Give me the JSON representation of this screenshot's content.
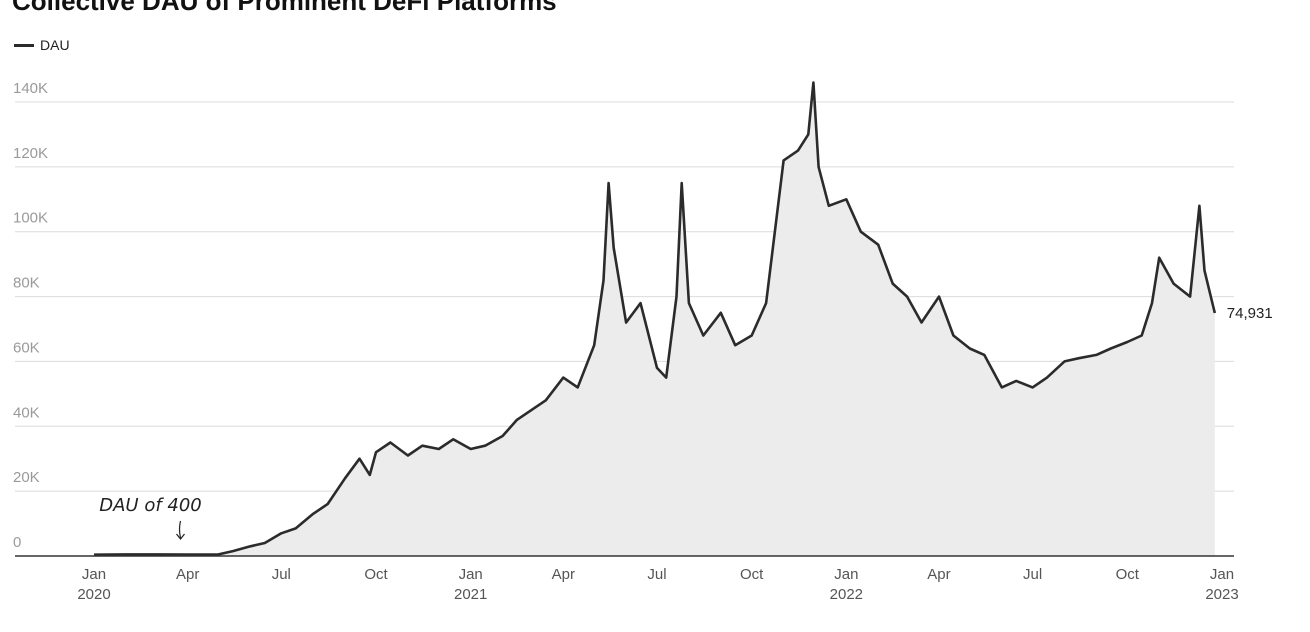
{
  "chart_data": {
    "type": "line",
    "title": "Collective DAU of Prominent DeFi Platforms",
    "legend": {
      "position": "top-left",
      "entries": [
        "DAU"
      ]
    },
    "grid": true,
    "ylim": [
      0,
      140000
    ],
    "y_ticks": [
      {
        "value": 0,
        "label": "0"
      },
      {
        "value": 20000,
        "label": "20K"
      },
      {
        "value": 40000,
        "label": "40K"
      },
      {
        "value": 60000,
        "label": "60K"
      },
      {
        "value": 80000,
        "label": "80K"
      },
      {
        "value": 100000,
        "label": "100K"
      },
      {
        "value": 120000,
        "label": "120K"
      },
      {
        "value": 140000,
        "label": "140K"
      }
    ],
    "xlim": [
      "2020-01-01",
      "2023-01-01"
    ],
    "x_ticks": [
      {
        "date": "2020-01-01",
        "line1": "Jan",
        "line2": "2020"
      },
      {
        "date": "2020-04-01",
        "line1": "Apr",
        "line2": ""
      },
      {
        "date": "2020-07-01",
        "line1": "Jul",
        "line2": ""
      },
      {
        "date": "2020-10-01",
        "line1": "Oct",
        "line2": ""
      },
      {
        "date": "2021-01-01",
        "line1": "Jan",
        "line2": "2021"
      },
      {
        "date": "2021-04-01",
        "line1": "Apr",
        "line2": ""
      },
      {
        "date": "2021-07-01",
        "line1": "Jul",
        "line2": ""
      },
      {
        "date": "2021-10-01",
        "line1": "Oct",
        "line2": ""
      },
      {
        "date": "2022-01-01",
        "line1": "Jan",
        "line2": "2022"
      },
      {
        "date": "2022-04-01",
        "line1": "Apr",
        "line2": ""
      },
      {
        "date": "2022-07-01",
        "line1": "Jul",
        "line2": ""
      },
      {
        "date": "2022-10-01",
        "line1": "Oct",
        "line2": ""
      },
      {
        "date": "2023-01-01",
        "line1": "Jan",
        "line2": "2023"
      }
    ],
    "annotations": [
      {
        "text": "DAU of 400",
        "date": "2020-03-27",
        "value": 400
      }
    ],
    "end_label": "74,931",
    "series": [
      {
        "name": "DAU",
        "color": "#2b2b2b",
        "fill": "#ececec",
        "points": [
          [
            "2020-01-01",
            400
          ],
          [
            "2020-02-01",
            500
          ],
          [
            "2020-03-01",
            500
          ],
          [
            "2020-04-01",
            450
          ],
          [
            "2020-05-01",
            500
          ],
          [
            "2020-05-15",
            1500
          ],
          [
            "2020-06-01",
            3000
          ],
          [
            "2020-06-15",
            4000
          ],
          [
            "2020-07-01",
            7000
          ],
          [
            "2020-07-15",
            8500
          ],
          [
            "2020-08-01",
            13000
          ],
          [
            "2020-08-15",
            16000
          ],
          [
            "2020-09-01",
            24000
          ],
          [
            "2020-09-15",
            30000
          ],
          [
            "2020-09-25",
            25000
          ],
          [
            "2020-10-01",
            32000
          ],
          [
            "2020-10-15",
            35000
          ],
          [
            "2020-11-01",
            31000
          ],
          [
            "2020-11-15",
            34000
          ],
          [
            "2020-12-01",
            33000
          ],
          [
            "2020-12-15",
            36000
          ],
          [
            "2021-01-01",
            33000
          ],
          [
            "2021-01-15",
            34000
          ],
          [
            "2021-02-01",
            37000
          ],
          [
            "2021-02-15",
            42000
          ],
          [
            "2021-03-01",
            45000
          ],
          [
            "2021-03-15",
            48000
          ],
          [
            "2021-04-01",
            55000
          ],
          [
            "2021-04-15",
            52000
          ],
          [
            "2021-05-01",
            65000
          ],
          [
            "2021-05-10",
            85000
          ],
          [
            "2021-05-15",
            115000
          ],
          [
            "2021-05-20",
            95000
          ],
          [
            "2021-06-01",
            72000
          ],
          [
            "2021-06-15",
            78000
          ],
          [
            "2021-07-01",
            58000
          ],
          [
            "2021-07-10",
            55000
          ],
          [
            "2021-07-20",
            80000
          ],
          [
            "2021-07-25",
            115000
          ],
          [
            "2021-08-01",
            78000
          ],
          [
            "2021-08-15",
            68000
          ],
          [
            "2021-09-01",
            75000
          ],
          [
            "2021-09-15",
            65000
          ],
          [
            "2021-10-01",
            68000
          ],
          [
            "2021-10-15",
            78000
          ],
          [
            "2021-11-01",
            122000
          ],
          [
            "2021-11-15",
            125000
          ],
          [
            "2021-11-25",
            130000
          ],
          [
            "2021-11-30",
            146000
          ],
          [
            "2021-12-05",
            120000
          ],
          [
            "2021-12-15",
            108000
          ],
          [
            "2022-01-01",
            110000
          ],
          [
            "2022-01-15",
            100000
          ],
          [
            "2022-02-01",
            96000
          ],
          [
            "2022-02-15",
            84000
          ],
          [
            "2022-03-01",
            80000
          ],
          [
            "2022-03-15",
            72000
          ],
          [
            "2022-04-01",
            80000
          ],
          [
            "2022-04-15",
            68000
          ],
          [
            "2022-05-01",
            64000
          ],
          [
            "2022-05-15",
            62000
          ],
          [
            "2022-06-01",
            52000
          ],
          [
            "2022-06-15",
            54000
          ],
          [
            "2022-07-01",
            52000
          ],
          [
            "2022-07-15",
            55000
          ],
          [
            "2022-08-01",
            60000
          ],
          [
            "2022-08-15",
            61000
          ],
          [
            "2022-09-01",
            62000
          ],
          [
            "2022-09-15",
            64000
          ],
          [
            "2022-10-01",
            66000
          ],
          [
            "2022-10-15",
            68000
          ],
          [
            "2022-10-25",
            78000
          ],
          [
            "2022-11-01",
            92000
          ],
          [
            "2022-11-15",
            84000
          ],
          [
            "2022-12-01",
            80000
          ],
          [
            "2022-12-10",
            108000
          ],
          [
            "2022-12-15",
            88000
          ],
          [
            "2022-12-25",
            74931
          ]
        ]
      }
    ]
  }
}
